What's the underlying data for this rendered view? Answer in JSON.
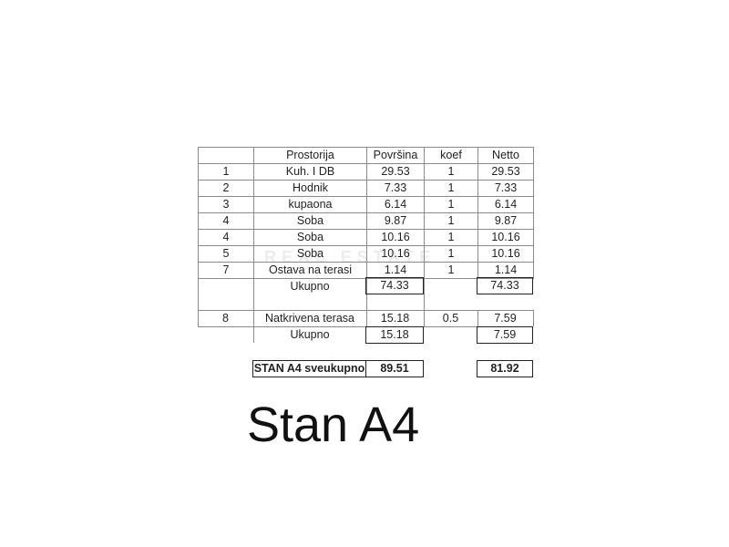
{
  "table": {
    "headers": [
      "",
      "Prostorija",
      "Površina",
      "koef",
      "Netto"
    ],
    "rows": [
      [
        "1",
        "Kuh. I DB",
        "29.53",
        "1",
        "29.53"
      ],
      [
        "2",
        "Hodnik",
        "7.33",
        "1",
        "7.33"
      ],
      [
        "3",
        "kupaona",
        "6.14",
        "1",
        "6.14"
      ],
      [
        "4",
        "Soba",
        "9.87",
        "1",
        "9.87"
      ],
      [
        "4",
        "Soba",
        "10.16",
        "1",
        "10.16"
      ],
      [
        "5",
        "Soba",
        "10.16",
        "1",
        "10.16"
      ],
      [
        "7",
        "Ostava na terasi",
        "1.14",
        "1",
        "1.14"
      ]
    ],
    "subtotal1": {
      "label": "Ukupno",
      "povrsina": "74.33",
      "netto": "74.33"
    },
    "terrace_row": [
      "8",
      "Natkrivena terasa",
      "15.18",
      "0.5",
      "7.59"
    ],
    "subtotal2": {
      "label": "Ukupno",
      "povrsina": "15.18",
      "netto": "7.59"
    },
    "grand_total": {
      "label": "STAN A4 sveukupno",
      "povrsina": "89.51",
      "netto": "81.92"
    }
  },
  "watermark": "REAL ESTATE",
  "title": "Stan A4"
}
